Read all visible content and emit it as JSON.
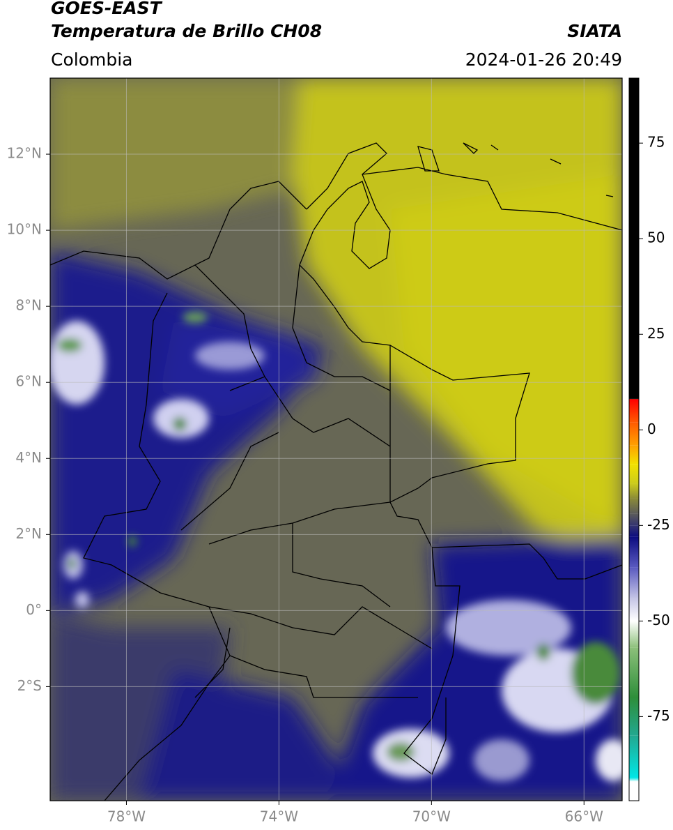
{
  "chart_data": {
    "type": "map",
    "title": "GOES-EAST",
    "subtitle": "Temperatura de Brillo CH08",
    "source": "SIATA",
    "region": "Colombia",
    "datetime": "2024-01-26 20:49",
    "xlim": [
      -80,
      -65
    ],
    "ylim": [
      -5,
      14
    ],
    "xticks": [
      {
        "value": -78,
        "label": "78°W"
      },
      {
        "value": -74,
        "label": "74°W"
      },
      {
        "value": -70,
        "label": "70°W"
      },
      {
        "value": -66,
        "label": "66°W"
      }
    ],
    "yticks": [
      {
        "value": 12,
        "label": "12°N"
      },
      {
        "value": 10,
        "label": "10°N"
      },
      {
        "value": 8,
        "label": "8°N"
      },
      {
        "value": 6,
        "label": "6°N"
      },
      {
        "value": 4,
        "label": "4°N"
      },
      {
        "value": 2,
        "label": "2°N"
      },
      {
        "value": 0,
        "label": "0°"
      },
      {
        "value": -2,
        "label": "2°S"
      }
    ],
    "grid": true,
    "colorbar": {
      "lim": [
        -97,
        92
      ],
      "ticks": [
        75,
        50,
        25,
        0,
        -25,
        -50,
        -75
      ],
      "stops": [
        {
          "value": -97,
          "color": "#ffffff"
        },
        {
          "value": -92,
          "color": "#ffffff"
        },
        {
          "value": -91,
          "color": "#00e6e6"
        },
        {
          "value": -80,
          "color": "#22a890"
        },
        {
          "value": -70,
          "color": "#2e8e3a"
        },
        {
          "value": -57,
          "color": "#8cc07a"
        },
        {
          "value": -50,
          "color": "#ffffff"
        },
        {
          "value": -44,
          "color": "#c4c4e6"
        },
        {
          "value": -36,
          "color": "#5a5ac0"
        },
        {
          "value": -28,
          "color": "#0c0c80"
        },
        {
          "value": -25,
          "color": "#343470"
        },
        {
          "value": -22,
          "color": "#5a5a5a"
        },
        {
          "value": -18,
          "color": "#8a8a38"
        },
        {
          "value": -14,
          "color": "#cccc1c"
        },
        {
          "value": -9,
          "color": "#f2e200"
        },
        {
          "value": -4,
          "color": "#ffa000"
        },
        {
          "value": 2,
          "color": "#ff5a00"
        },
        {
          "value": 8,
          "color": "#ff0000"
        },
        {
          "value": 8.1,
          "color": "#000000"
        },
        {
          "value": 92,
          "color": "#000000"
        }
      ]
    }
  }
}
